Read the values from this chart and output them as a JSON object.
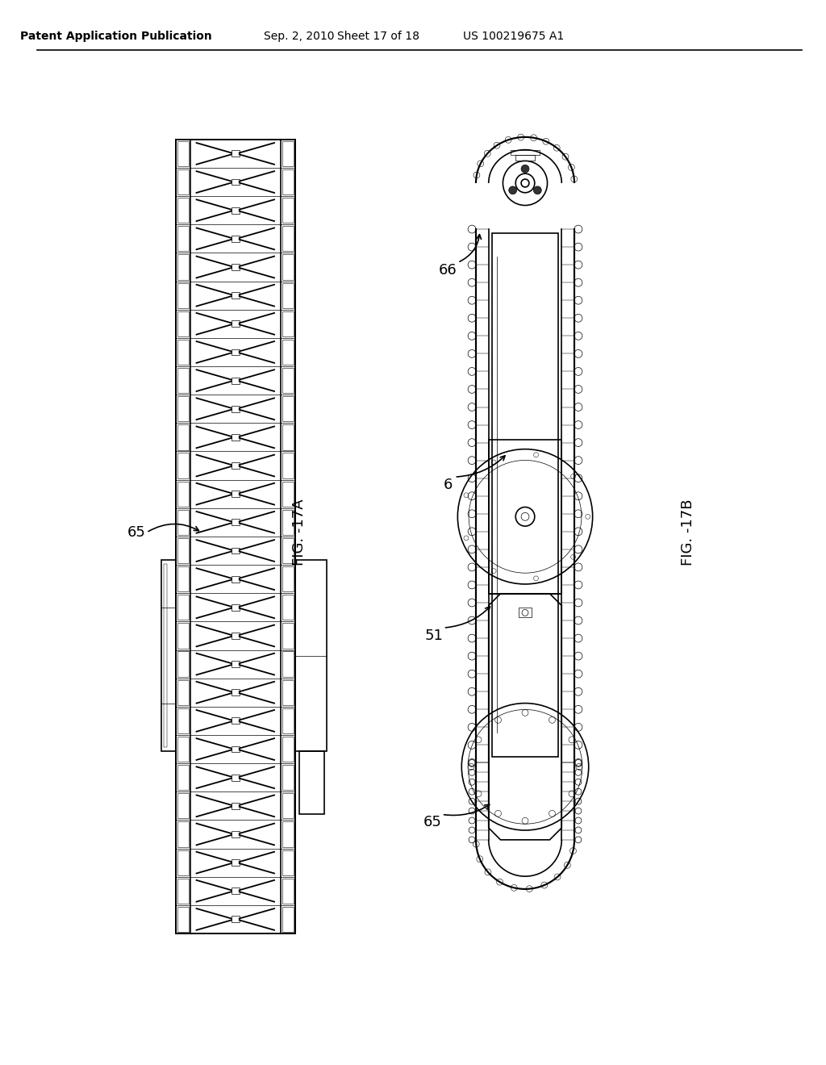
{
  "background_color": "#ffffff",
  "header_text": "Patent Application Publication",
  "header_date": "Sep. 2, 2010",
  "header_sheet": "Sheet 17 of 18",
  "header_patent": "US 100219675 A1",
  "fig17a_label": "FIG. -17A",
  "fig17b_label": "FIG. -17B",
  "label_65_left": "65",
  "label_66": "66",
  "label_6": "6",
  "label_51": "51",
  "label_65_right": "65",
  "line_color": "#000000",
  "line_width": 1.2,
  "thin_line": 0.5
}
